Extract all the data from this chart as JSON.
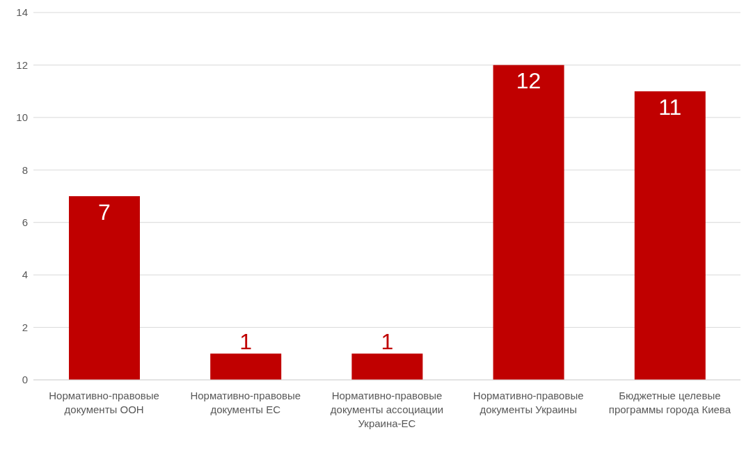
{
  "chart_data": {
    "type": "bar",
    "categories": [
      "Нормативно-правовые документы ООН",
      "Нормативно-правовые документы ЕС",
      "Нормативно-правовые документы ассоциации Украина-ЕС",
      "Нормативно-правовые документы Украины",
      "Бюджетные целевые программы города Киева"
    ],
    "values": [
      7,
      1,
      1,
      12,
      11
    ],
    "color": "#c00000",
    "ylim": [
      0,
      14
    ],
    "yticks": [
      0,
      2,
      4,
      6,
      8,
      10,
      12,
      14
    ],
    "grid": "y",
    "data_labels": true
  }
}
